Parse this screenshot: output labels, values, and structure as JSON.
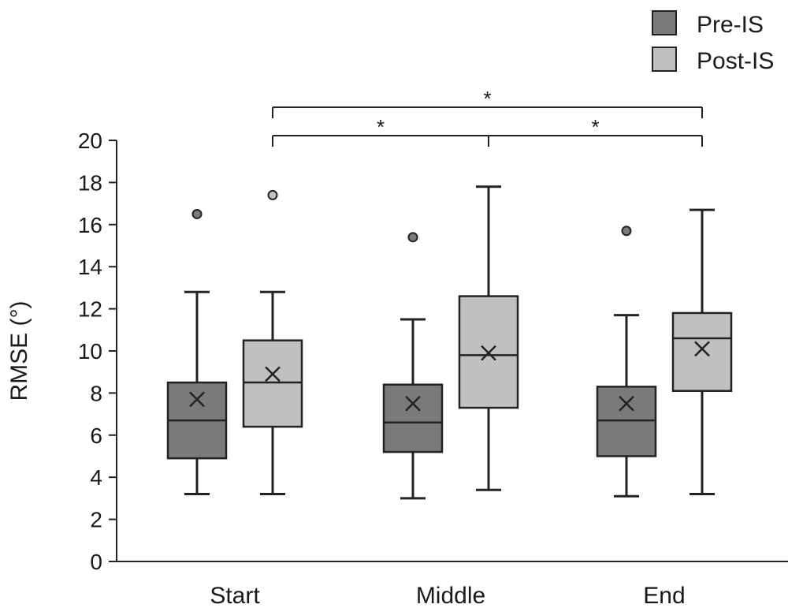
{
  "chart_data": {
    "type": "box",
    "ylabel": "RMSE (°)",
    "xlabel": "",
    "ylim": [
      0,
      20
    ],
    "yticks": [
      0,
      2,
      4,
      6,
      8,
      10,
      12,
      14,
      16,
      18,
      20
    ],
    "categories": [
      "Start",
      "Middle",
      "End"
    ],
    "legend_position": "top-right",
    "series": [
      {
        "name": "Pre-IS",
        "color": "#7a7a7a",
        "boxes": [
          {
            "min": 3.2,
            "q1": 4.9,
            "median": 6.7,
            "q3": 8.5,
            "max": 12.8,
            "mean": 7.7,
            "outliers": [
              16.5
            ]
          },
          {
            "min": 3.0,
            "q1": 5.2,
            "median": 6.6,
            "q3": 8.4,
            "max": 11.5,
            "mean": 7.5,
            "outliers": [
              15.4
            ]
          },
          {
            "min": 3.1,
            "q1": 5.0,
            "median": 6.7,
            "q3": 8.3,
            "max": 11.7,
            "mean": 7.5,
            "outliers": [
              15.7
            ]
          }
        ]
      },
      {
        "name": "Post-IS",
        "color": "#c0c0c0",
        "boxes": [
          {
            "min": 3.2,
            "q1": 6.4,
            "median": 8.5,
            "q3": 10.5,
            "max": 12.8,
            "mean": 8.9,
            "outliers": [
              17.4
            ]
          },
          {
            "min": 3.4,
            "q1": 7.3,
            "median": 9.8,
            "q3": 12.6,
            "max": 17.8,
            "mean": 9.9,
            "outliers": []
          },
          {
            "min": 3.2,
            "q1": 8.1,
            "median": 10.6,
            "q3": 11.8,
            "max": 16.7,
            "mean": 10.1,
            "outliers": []
          }
        ]
      }
    ],
    "significance": [
      {
        "from_category": "Start",
        "to_category": "Middle",
        "series": "Post-IS",
        "label": "*"
      },
      {
        "from_category": "Middle",
        "to_category": "End",
        "series": "Post-IS",
        "label": "*"
      },
      {
        "from_category": "Start",
        "to_category": "End",
        "series": "Post-IS",
        "label": "*"
      }
    ]
  }
}
